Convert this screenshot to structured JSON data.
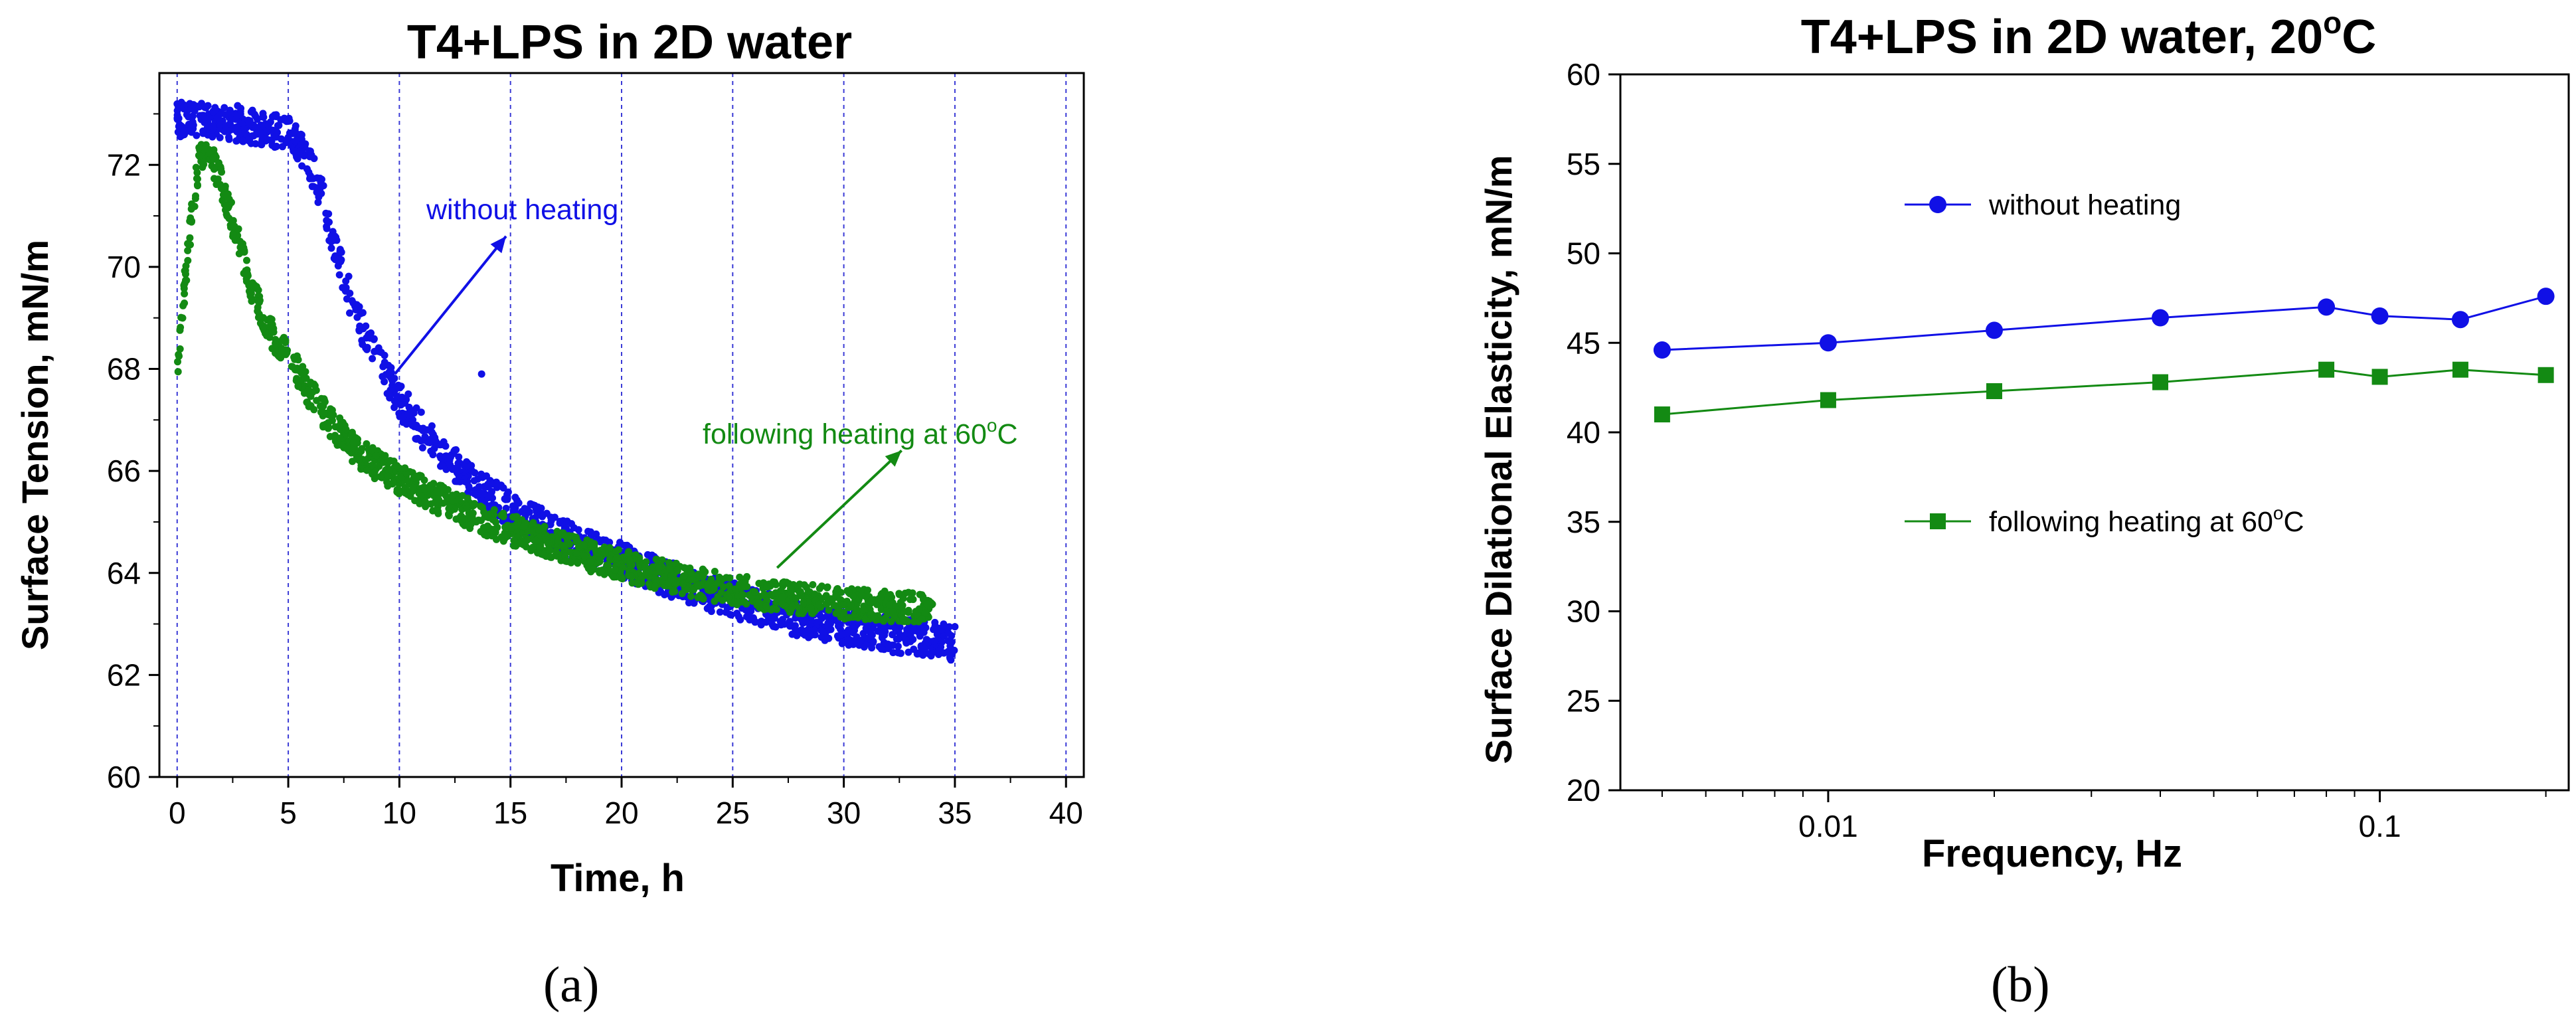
{
  "panel_labels": {
    "a": "(a)",
    "b": "(b)"
  },
  "colors": {
    "blue": "#1010e6",
    "green": "#138a13",
    "axis": "#000000",
    "grid": "#3a3ad6"
  },
  "chart_data": [
    {
      "type": "scatter",
      "title": "T4+LPS in 2D water",
      "xlabel": "Time, h",
      "ylabel": "Surface Tension, mN/m",
      "xlim": [
        -0.8,
        40.8
      ],
      "ylim": [
        60,
        73.8
      ],
      "xticks": [
        0,
        5,
        10,
        15,
        20,
        25,
        30,
        35,
        40
      ],
      "yticks": [
        60,
        62,
        64,
        66,
        68,
        70,
        72
      ],
      "vgrid": [
        0,
        5,
        10,
        15,
        20,
        25,
        30,
        35,
        40
      ],
      "series": [
        {
          "name": "without heating",
          "color": "#1010e6",
          "x": [
            0,
            1,
            2,
            3,
            4,
            5,
            5.5,
            6,
            6.5,
            7,
            7.5,
            8,
            9,
            10,
            11,
            12,
            13,
            14,
            15,
            16,
            18,
            20,
            22,
            24,
            26,
            28,
            30,
            32,
            34,
            35
          ],
          "y": [
            72.9,
            72.9,
            72.85,
            72.8,
            72.7,
            72.6,
            72.4,
            72.0,
            71.4,
            70.6,
            69.8,
            69.1,
            68.2,
            67.4,
            66.8,
            66.3,
            65.9,
            65.55,
            65.25,
            65.0,
            64.6,
            64.25,
            63.9,
            63.6,
            63.35,
            63.1,
            62.95,
            62.8,
            62.7,
            62.6
          ],
          "band": 0.35,
          "outliers": [
            [
              13.7,
              67.9
            ]
          ]
        },
        {
          "name": "following heating at 60°C",
          "color": "#138a13",
          "x": [
            0,
            0.2,
            0.5,
            0.8,
            1.0,
            1.3,
            1.6,
            2,
            2.5,
            3,
            3.5,
            4,
            4.5,
            5,
            5.5,
            6,
            7,
            8,
            9,
            10,
            11,
            12,
            14,
            16,
            18,
            20,
            22,
            24,
            26,
            28,
            30,
            32,
            34
          ],
          "y": [
            67.8,
            69.0,
            70.4,
            71.5,
            72.1,
            72.25,
            72.1,
            71.6,
            70.9,
            70.1,
            69.4,
            68.9,
            68.5,
            68.2,
            67.9,
            67.5,
            66.9,
            66.4,
            66.1,
            65.85,
            65.6,
            65.4,
            65.0,
            64.7,
            64.4,
            64.15,
            63.95,
            63.75,
            63.6,
            63.5,
            63.4,
            63.35,
            63.3
          ],
          "band": 0.3
        }
      ],
      "annotations": [
        {
          "text": "without heating",
          "color": "#1010e6",
          "arrow_from": [
            9.8,
            67.9
          ],
          "arrow_to": [
            14.8,
            70.6
          ]
        },
        {
          "text": "following heating at 60",
          "sup": "o",
          "suffix": "C",
          "color": "#138a13",
          "arrow_from": [
            27.0,
            64.1
          ],
          "arrow_to": [
            32.6,
            66.4
          ]
        }
      ]
    },
    {
      "type": "line",
      "title": "T4+LPS in 2D water, 20",
      "title_sup": "o",
      "title_suffix": "C",
      "xlabel": "Frequency, Hz",
      "ylabel": "Surface Dilational Elasticity, mN/m",
      "xscale": "log",
      "xlim": [
        0.0042,
        0.22
      ],
      "ylim": [
        20,
        60
      ],
      "xticks": [
        0.01,
        0.1
      ],
      "xtick_labels": [
        "0.01",
        "0.1"
      ],
      "yticks": [
        20,
        25,
        30,
        35,
        40,
        45,
        50,
        55,
        60
      ],
      "series": [
        {
          "name": "without heating",
          "marker": "circle",
          "color": "#1010e6",
          "x": [
            0.005,
            0.01,
            0.02,
            0.04,
            0.08,
            0.1,
            0.14,
            0.2
          ],
          "y": [
            44.6,
            45.0,
            45.7,
            46.4,
            47.0,
            46.5,
            46.3,
            47.6
          ]
        },
        {
          "name": "following heating at 60°C",
          "marker": "square",
          "color": "#138a13",
          "x": [
            0.005,
            0.01,
            0.02,
            0.04,
            0.08,
            0.1,
            0.14,
            0.2
          ],
          "y": [
            41.0,
            41.8,
            42.3,
            42.8,
            43.5,
            43.1,
            43.5,
            43.2
          ]
        }
      ],
      "legend": [
        {
          "text": "without heating"
        },
        {
          "text": "following heating at 60",
          "sup": "o",
          "suffix": "C"
        }
      ]
    }
  ]
}
